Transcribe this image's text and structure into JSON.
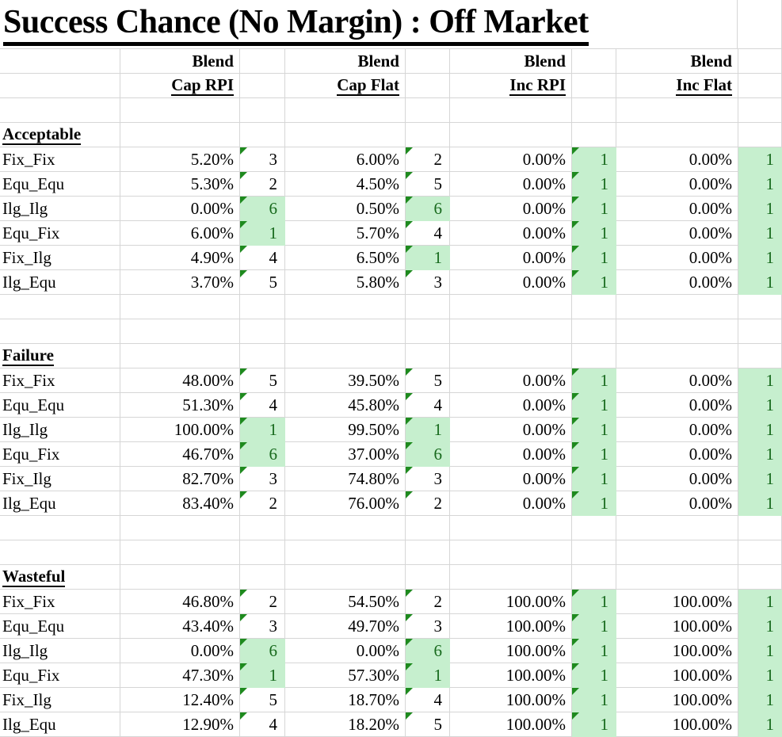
{
  "title": "Success Chance (No Margin) : Off Market",
  "header": {
    "group_label": "Blend",
    "columns": [
      "Cap RPI",
      "Cap Flat",
      "Inc RPI",
      "Inc Flat"
    ],
    "rank_has_flag": [
      true,
      true,
      true,
      false
    ]
  },
  "colors": {
    "highlight_fill": "#c6efce",
    "highlight_text": "#17691c",
    "flag_triangle": "#1e8a1e",
    "gridline": "#d6d6d6"
  },
  "sections": [
    {
      "name": "Acceptable",
      "rows": [
        {
          "label": "Fix_Fix",
          "cells": [
            {
              "pct": "5.20%",
              "rank": "3",
              "highlight": false
            },
            {
              "pct": "6.00%",
              "rank": "2",
              "highlight": false
            },
            {
              "pct": "0.00%",
              "rank": "1",
              "highlight": true
            },
            {
              "pct": "0.00%",
              "rank": "1",
              "highlight": true
            }
          ]
        },
        {
          "label": "Equ_Equ",
          "cells": [
            {
              "pct": "5.30%",
              "rank": "2",
              "highlight": false
            },
            {
              "pct": "4.50%",
              "rank": "5",
              "highlight": false
            },
            {
              "pct": "0.00%",
              "rank": "1",
              "highlight": true
            },
            {
              "pct": "0.00%",
              "rank": "1",
              "highlight": true
            }
          ]
        },
        {
          "label": "Ilg_Ilg",
          "cells": [
            {
              "pct": "0.00%",
              "rank": "6",
              "highlight": true
            },
            {
              "pct": "0.50%",
              "rank": "6",
              "highlight": true
            },
            {
              "pct": "0.00%",
              "rank": "1",
              "highlight": true
            },
            {
              "pct": "0.00%",
              "rank": "1",
              "highlight": true
            }
          ]
        },
        {
          "label": "Equ_Fix",
          "cells": [
            {
              "pct": "6.00%",
              "rank": "1",
              "highlight": true
            },
            {
              "pct": "5.70%",
              "rank": "4",
              "highlight": false
            },
            {
              "pct": "0.00%",
              "rank": "1",
              "highlight": true
            },
            {
              "pct": "0.00%",
              "rank": "1",
              "highlight": true
            }
          ]
        },
        {
          "label": "Fix_Ilg",
          "cells": [
            {
              "pct": "4.90%",
              "rank": "4",
              "highlight": false
            },
            {
              "pct": "6.50%",
              "rank": "1",
              "highlight": true
            },
            {
              "pct": "0.00%",
              "rank": "1",
              "highlight": true
            },
            {
              "pct": "0.00%",
              "rank": "1",
              "highlight": true
            }
          ]
        },
        {
          "label": "Ilg_Equ",
          "cells": [
            {
              "pct": "3.70%",
              "rank": "5",
              "highlight": false
            },
            {
              "pct": "5.80%",
              "rank": "3",
              "highlight": false
            },
            {
              "pct": "0.00%",
              "rank": "1",
              "highlight": true
            },
            {
              "pct": "0.00%",
              "rank": "1",
              "highlight": true
            }
          ]
        }
      ]
    },
    {
      "name": "Failure",
      "rows": [
        {
          "label": "Fix_Fix",
          "cells": [
            {
              "pct": "48.00%",
              "rank": "5",
              "highlight": false
            },
            {
              "pct": "39.50%",
              "rank": "5",
              "highlight": false
            },
            {
              "pct": "0.00%",
              "rank": "1",
              "highlight": true
            },
            {
              "pct": "0.00%",
              "rank": "1",
              "highlight": true
            }
          ]
        },
        {
          "label": "Equ_Equ",
          "cells": [
            {
              "pct": "51.30%",
              "rank": "4",
              "highlight": false
            },
            {
              "pct": "45.80%",
              "rank": "4",
              "highlight": false
            },
            {
              "pct": "0.00%",
              "rank": "1",
              "highlight": true
            },
            {
              "pct": "0.00%",
              "rank": "1",
              "highlight": true
            }
          ]
        },
        {
          "label": "Ilg_Ilg",
          "cells": [
            {
              "pct": "100.00%",
              "rank": "1",
              "highlight": true
            },
            {
              "pct": "99.50%",
              "rank": "1",
              "highlight": true
            },
            {
              "pct": "0.00%",
              "rank": "1",
              "highlight": true
            },
            {
              "pct": "0.00%",
              "rank": "1",
              "highlight": true
            }
          ]
        },
        {
          "label": "Equ_Fix",
          "cells": [
            {
              "pct": "46.70%",
              "rank": "6",
              "highlight": true
            },
            {
              "pct": "37.00%",
              "rank": "6",
              "highlight": true
            },
            {
              "pct": "0.00%",
              "rank": "1",
              "highlight": true
            },
            {
              "pct": "0.00%",
              "rank": "1",
              "highlight": true
            }
          ]
        },
        {
          "label": "Fix_Ilg",
          "cells": [
            {
              "pct": "82.70%",
              "rank": "3",
              "highlight": false
            },
            {
              "pct": "74.80%",
              "rank": "3",
              "highlight": false
            },
            {
              "pct": "0.00%",
              "rank": "1",
              "highlight": true
            },
            {
              "pct": "0.00%",
              "rank": "1",
              "highlight": true
            }
          ]
        },
        {
          "label": "Ilg_Equ",
          "cells": [
            {
              "pct": "83.40%",
              "rank": "2",
              "highlight": false
            },
            {
              "pct": "76.00%",
              "rank": "2",
              "highlight": false
            },
            {
              "pct": "0.00%",
              "rank": "1",
              "highlight": true
            },
            {
              "pct": "0.00%",
              "rank": "1",
              "highlight": true
            }
          ]
        }
      ]
    },
    {
      "name": "Wasteful",
      "rows": [
        {
          "label": "Fix_Fix",
          "cells": [
            {
              "pct": "46.80%",
              "rank": "2",
              "highlight": false
            },
            {
              "pct": "54.50%",
              "rank": "2",
              "highlight": false
            },
            {
              "pct": "100.00%",
              "rank": "1",
              "highlight": true
            },
            {
              "pct": "100.00%",
              "rank": "1",
              "highlight": true
            }
          ]
        },
        {
          "label": "Equ_Equ",
          "cells": [
            {
              "pct": "43.40%",
              "rank": "3",
              "highlight": false
            },
            {
              "pct": "49.70%",
              "rank": "3",
              "highlight": false
            },
            {
              "pct": "100.00%",
              "rank": "1",
              "highlight": true
            },
            {
              "pct": "100.00%",
              "rank": "1",
              "highlight": true
            }
          ]
        },
        {
          "label": "Ilg_Ilg",
          "cells": [
            {
              "pct": "0.00%",
              "rank": "6",
              "highlight": true
            },
            {
              "pct": "0.00%",
              "rank": "6",
              "highlight": true
            },
            {
              "pct": "100.00%",
              "rank": "1",
              "highlight": true
            },
            {
              "pct": "100.00%",
              "rank": "1",
              "highlight": true
            }
          ]
        },
        {
          "label": "Equ_Fix",
          "cells": [
            {
              "pct": "47.30%",
              "rank": "1",
              "highlight": true
            },
            {
              "pct": "57.30%",
              "rank": "1",
              "highlight": true
            },
            {
              "pct": "100.00%",
              "rank": "1",
              "highlight": true
            },
            {
              "pct": "100.00%",
              "rank": "1",
              "highlight": true
            }
          ]
        },
        {
          "label": "Fix_Ilg",
          "cells": [
            {
              "pct": "12.40%",
              "rank": "5",
              "highlight": false
            },
            {
              "pct": "18.70%",
              "rank": "4",
              "highlight": false
            },
            {
              "pct": "100.00%",
              "rank": "1",
              "highlight": true
            },
            {
              "pct": "100.00%",
              "rank": "1",
              "highlight": true
            }
          ]
        },
        {
          "label": "Ilg_Equ",
          "cells": [
            {
              "pct": "12.90%",
              "rank": "4",
              "highlight": false
            },
            {
              "pct": "18.20%",
              "rank": "5",
              "highlight": false
            },
            {
              "pct": "100.00%",
              "rank": "1",
              "highlight": true
            },
            {
              "pct": "100.00%",
              "rank": "1",
              "highlight": true
            }
          ]
        }
      ]
    }
  ]
}
